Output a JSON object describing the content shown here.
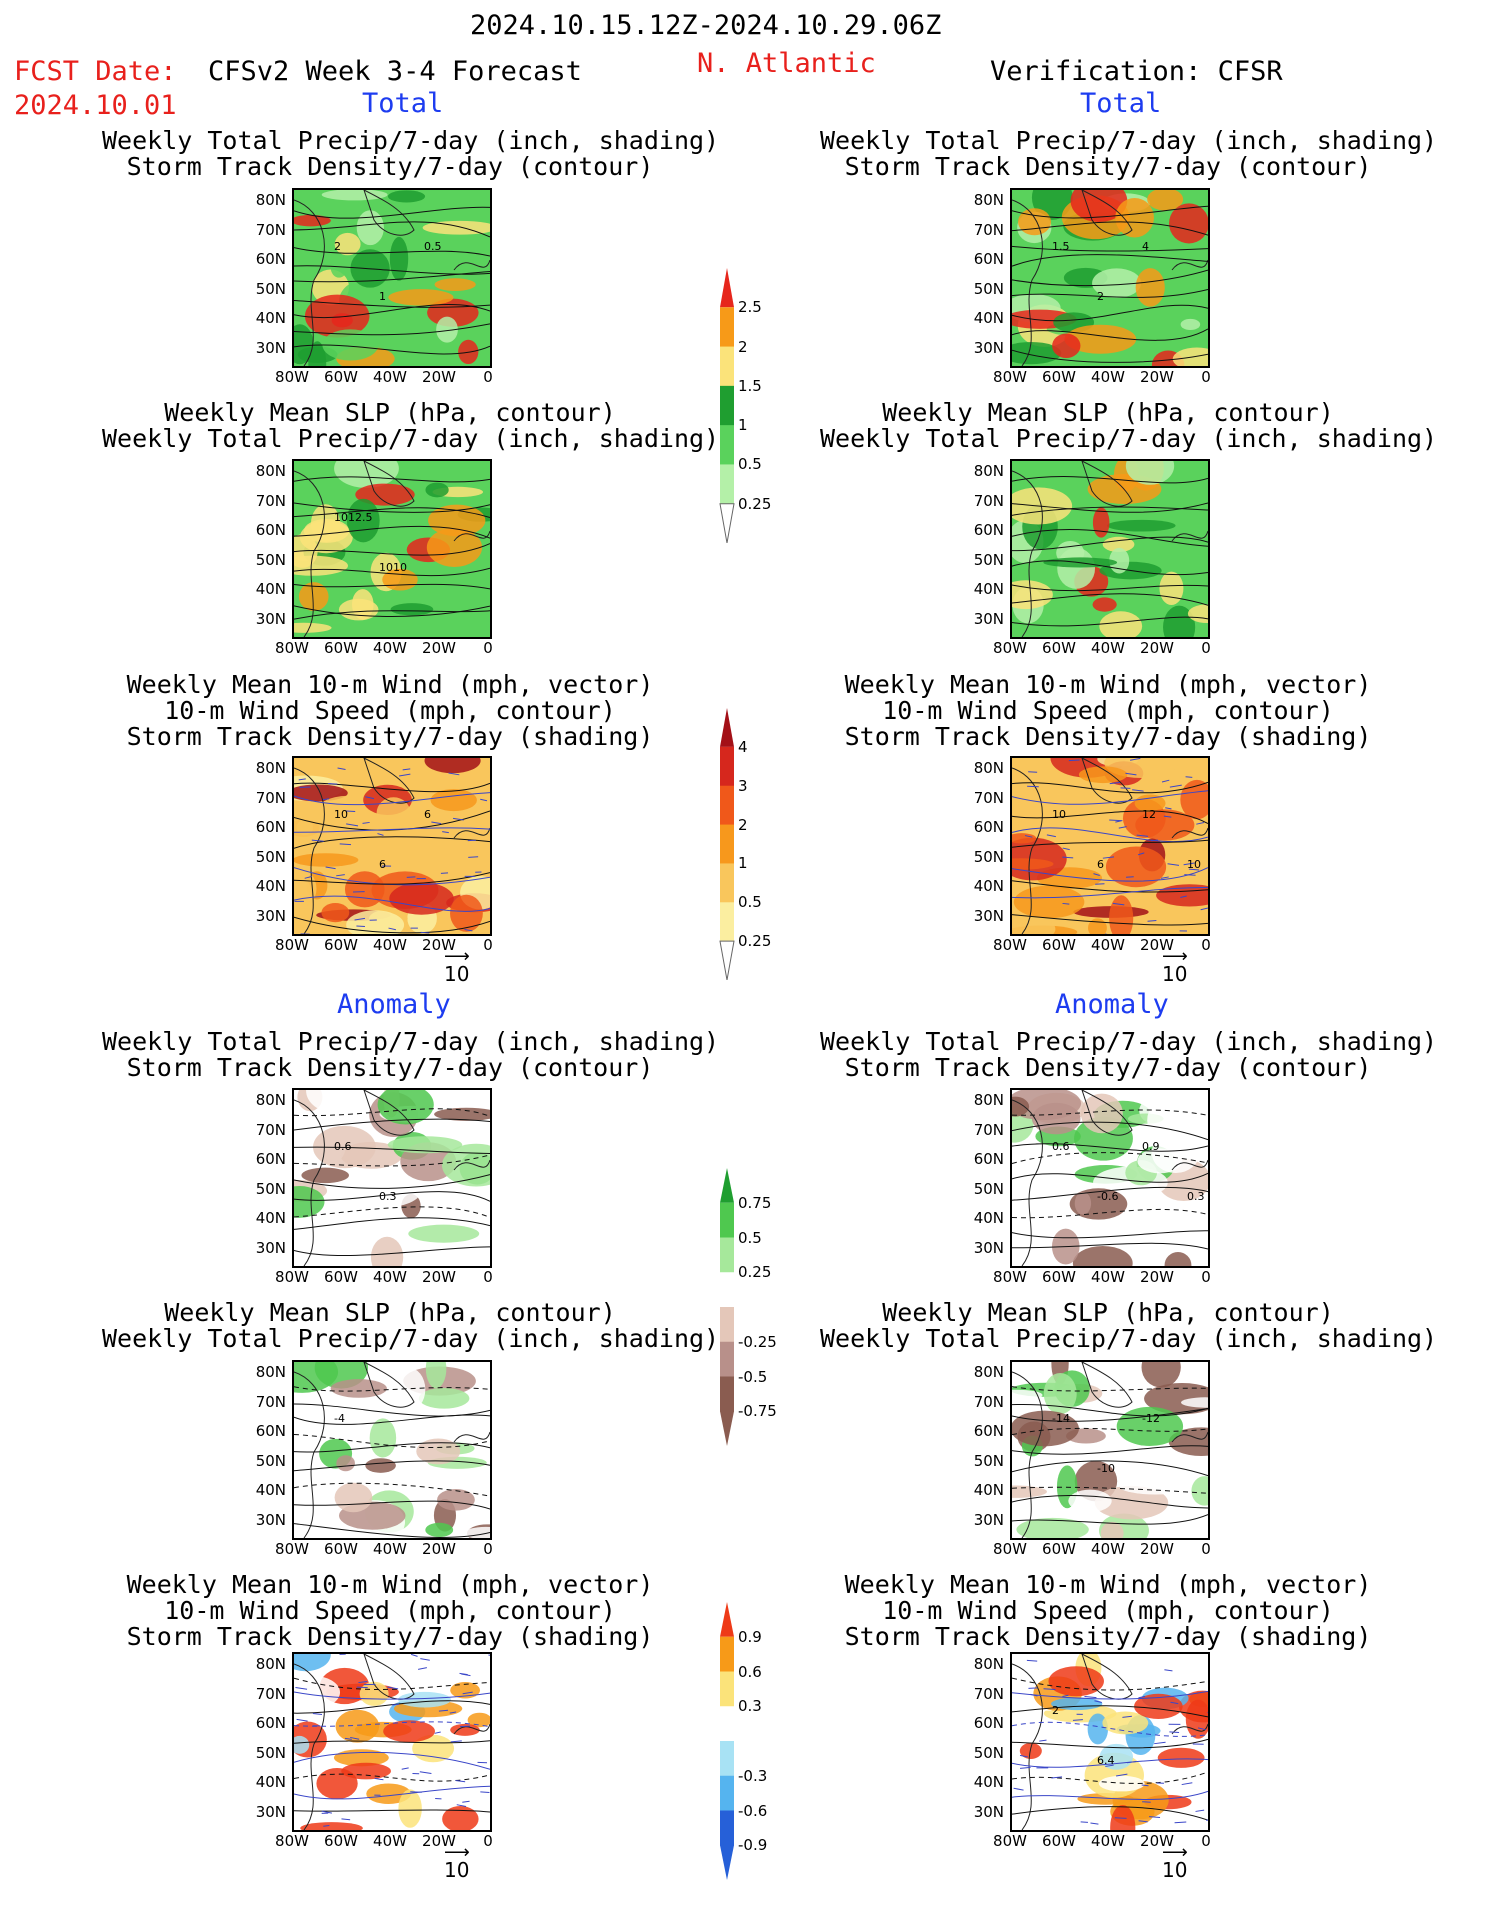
{
  "header": {
    "period": "2024.10.15.12Z-2024.10.29.06Z",
    "fcst_label": "FCST Date:",
    "fcst_date": "2024.10.01",
    "model_title": "CFSv2 Week 3-4 Forecast",
    "region": "N. Atlantic",
    "verification": "Verification: CFSR"
  },
  "sections": {
    "total": "Total",
    "anomaly": "Anomaly"
  },
  "titles": {
    "precip_storm": [
      "Weekly Total Precip/7-day (inch, shading)",
      "Storm Track Density/7-day (contour)"
    ],
    "slp_precip": [
      "Weekly Mean SLP (hPa, contour)",
      "Weekly Total Precip/7-day (inch, shading)"
    ],
    "wind_storm": [
      "Weekly Mean 10-m Wind (mph, vector)",
      "10-m Wind Speed (mph, contour)",
      "Storm Track Density/7-day (shading)"
    ]
  },
  "axes": {
    "lat_ticks": [
      "80N",
      "70N",
      "60N",
      "50N",
      "40N",
      "30N"
    ],
    "lon_ticks": [
      "80W",
      "60W",
      "40W",
      "20W",
      "0"
    ]
  },
  "vector_ref": "10",
  "colorbars": {
    "total_precip": {
      "labels": [
        "2.5",
        "2",
        "1.5",
        "1",
        "0.5",
        "0.25"
      ],
      "colors": [
        "#e6261c",
        "#f79a18",
        "#fbe37a",
        "#1f9e30",
        "#5ad25c",
        "#b4f0a8"
      ]
    },
    "total_storm": {
      "labels": [
        "4",
        "3",
        "2",
        "1",
        "0.5",
        "0.25"
      ],
      "colors": [
        "#a31017",
        "#d6271d",
        "#f0581a",
        "#f7981c",
        "#f9c65c",
        "#fbeea0"
      ]
    },
    "anom_precip": {
      "labels": [
        "0.75",
        "0.5",
        "0.25",
        "-0.25",
        "-0.5",
        "-0.75"
      ],
      "colors": [
        "#1f9e30",
        "#4fc84f",
        "#a6e89b",
        "#ffffff",
        "#e4c7b9",
        "#b8908a",
        "#8a5c50"
      ]
    },
    "anom_storm": {
      "labels": [
        "0.9",
        "0.6",
        "0.3",
        "-0.3",
        "-0.6",
        "-0.9"
      ],
      "colors": [
        "#ee3a18",
        "#f79a18",
        "#fbe37a",
        "#ffffff",
        "#a8e2f4",
        "#55b4ef",
        "#2660d8"
      ]
    }
  },
  "contour_labels": {
    "r1l": [
      "2",
      "1",
      "0.5"
    ],
    "r1r": [
      "1.5",
      "2",
      "4"
    ],
    "r2l": [
      "1012.5",
      "1010"
    ],
    "r3l": [
      "10",
      "6",
      "6"
    ],
    "r3r": [
      "10",
      "6",
      "12",
      "10"
    ],
    "r4l": [
      "0.6",
      "0.3"
    ],
    "r4r": [
      "0.6",
      "-0.6",
      "0.9",
      "0.3"
    ],
    "r5l": [
      "-4"
    ],
    "r5r": [
      "-14",
      "-10",
      "-12"
    ],
    "r6r": [
      "2",
      "6.4"
    ]
  },
  "chart_data": [
    {
      "type": "heatmap",
      "title": "Weekly Total Precip/7-day (inch, shading)",
      "subtitle": "Storm Track Density/7-day (contour)",
      "section": "Total",
      "column": "CFSv2 Week 3-4 Forecast",
      "colorbar_levels": [
        0.25,
        0.5,
        1,
        1.5,
        2,
        2.5
      ]
    },
    {
      "type": "heatmap",
      "title": "Weekly Total Precip/7-day (inch, shading)",
      "subtitle": "Storm Track Density/7-day (contour)",
      "section": "Total",
      "column": "Verification: CFSR",
      "colorbar_levels": [
        0.25,
        0.5,
        1,
        1.5,
        2,
        2.5
      ]
    },
    {
      "type": "heatmap",
      "title": "Weekly Mean SLP (hPa, contour)",
      "subtitle": "Weekly Total Precip/7-day (inch, shading)",
      "section": "Total",
      "column": "CFSv2 Week 3-4 Forecast",
      "contour_labels": [
        1012.5,
        1010
      ]
    },
    {
      "type": "heatmap",
      "title": "Weekly Mean SLP (hPa, contour)",
      "subtitle": "Weekly Total Precip/7-day (inch, shading)",
      "section": "Total",
      "column": "Verification: CFSR"
    },
    {
      "type": "heatmap",
      "title": "Weekly Mean 10-m Wind (mph, vector)",
      "section": "Total",
      "column": "CFSv2 Week 3-4 Forecast",
      "colorbar_levels": [
        0.25,
        0.5,
        1,
        2,
        3,
        4
      ],
      "vector_reference": 10
    },
    {
      "type": "heatmap",
      "title": "Weekly Mean 10-m Wind (mph, vector)",
      "section": "Total",
      "column": "Verification: CFSR",
      "colorbar_levels": [
        0.25,
        0.5,
        1,
        2,
        3,
        4
      ],
      "vector_reference": 10
    },
    {
      "type": "heatmap",
      "title": "Weekly Total Precip/7-day (inch, shading)",
      "section": "Anomaly",
      "column": "CFSv2 Week 3-4 Forecast",
      "colorbar_levels": [
        -0.75,
        -0.5,
        -0.25,
        0.25,
        0.5,
        0.75
      ]
    },
    {
      "type": "heatmap",
      "title": "Weekly Total Precip/7-day (inch, shading)",
      "section": "Anomaly",
      "column": "Verification: CFSR",
      "colorbar_levels": [
        -0.75,
        -0.5,
        -0.25,
        0.25,
        0.5,
        0.75
      ]
    },
    {
      "type": "heatmap",
      "title": "Weekly Mean SLP (hPa, contour)",
      "section": "Anomaly",
      "column": "CFSv2 Week 3-4 Forecast"
    },
    {
      "type": "heatmap",
      "title": "Weekly Mean SLP (hPa, contour)",
      "section": "Anomaly",
      "column": "Verification: CFSR"
    },
    {
      "type": "heatmap",
      "title": "Weekly Mean 10-m Wind (mph, vector)",
      "section": "Anomaly",
      "column": "CFSv2 Week 3-4 Forecast",
      "colorbar_levels": [
        -0.9,
        -0.6,
        -0.3,
        0.3,
        0.6,
        0.9
      ],
      "vector_reference": 10
    },
    {
      "type": "heatmap",
      "title": "Weekly Mean 10-m Wind (mph, vector)",
      "section": "Anomaly",
      "column": "Verification: CFSR",
      "colorbar_levels": [
        -0.9,
        -0.6,
        -0.3,
        0.3,
        0.6,
        0.9
      ],
      "vector_reference": 10
    }
  ]
}
